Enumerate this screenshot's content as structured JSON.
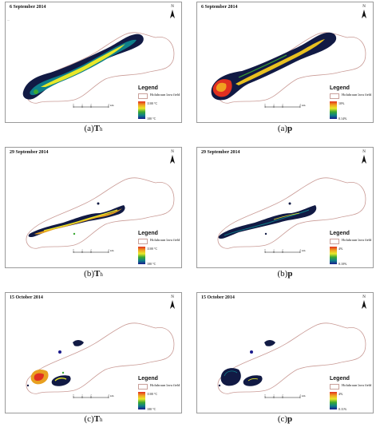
{
  "legend_title": "Legend",
  "lava_field_label": "Holuhraun lava field",
  "north_label": "N",
  "scale_unit": "km",
  "scale_ticks": [
    "0",
    "1",
    "2",
    "4"
  ],
  "colormap": [
    "#1a1a8c",
    "#0e7f8a",
    "#3aa832",
    "#e8e82a",
    "#f0a020",
    "#e03020"
  ],
  "panels": [
    {
      "date": "6 September 2014",
      "caption_letter": "(a)",
      "caption_symbol": "T",
      "caption_sub": "h",
      "cbar_max": "1100 °C",
      "cbar_min": "100 °C"
    },
    {
      "date": "6 September 2014",
      "caption_letter": "(a)",
      "caption_symbol": "p",
      "caption_sub": "",
      "cbar_max": "10%",
      "cbar_min": "0.14%"
    },
    {
      "date": "29 September 2014",
      "caption_letter": "(b)",
      "caption_symbol": "T",
      "caption_sub": "h",
      "cbar_max": "1100 °C",
      "cbar_min": "100 °C"
    },
    {
      "date": "29 September 2014",
      "caption_letter": "(b)",
      "caption_symbol": "p",
      "caption_sub": "",
      "cbar_max": "4%",
      "cbar_min": "0.10%"
    },
    {
      "date": "15 October 2014",
      "caption_letter": "(c)",
      "caption_symbol": "T",
      "caption_sub": "h",
      "cbar_max": "1100 °C",
      "cbar_min": "100 °C"
    },
    {
      "date": "15 October 2014",
      "caption_letter": "(c)",
      "caption_symbol": "p",
      "caption_sub": "",
      "cbar_max": "4%",
      "cbar_min": "0.11%"
    }
  ]
}
